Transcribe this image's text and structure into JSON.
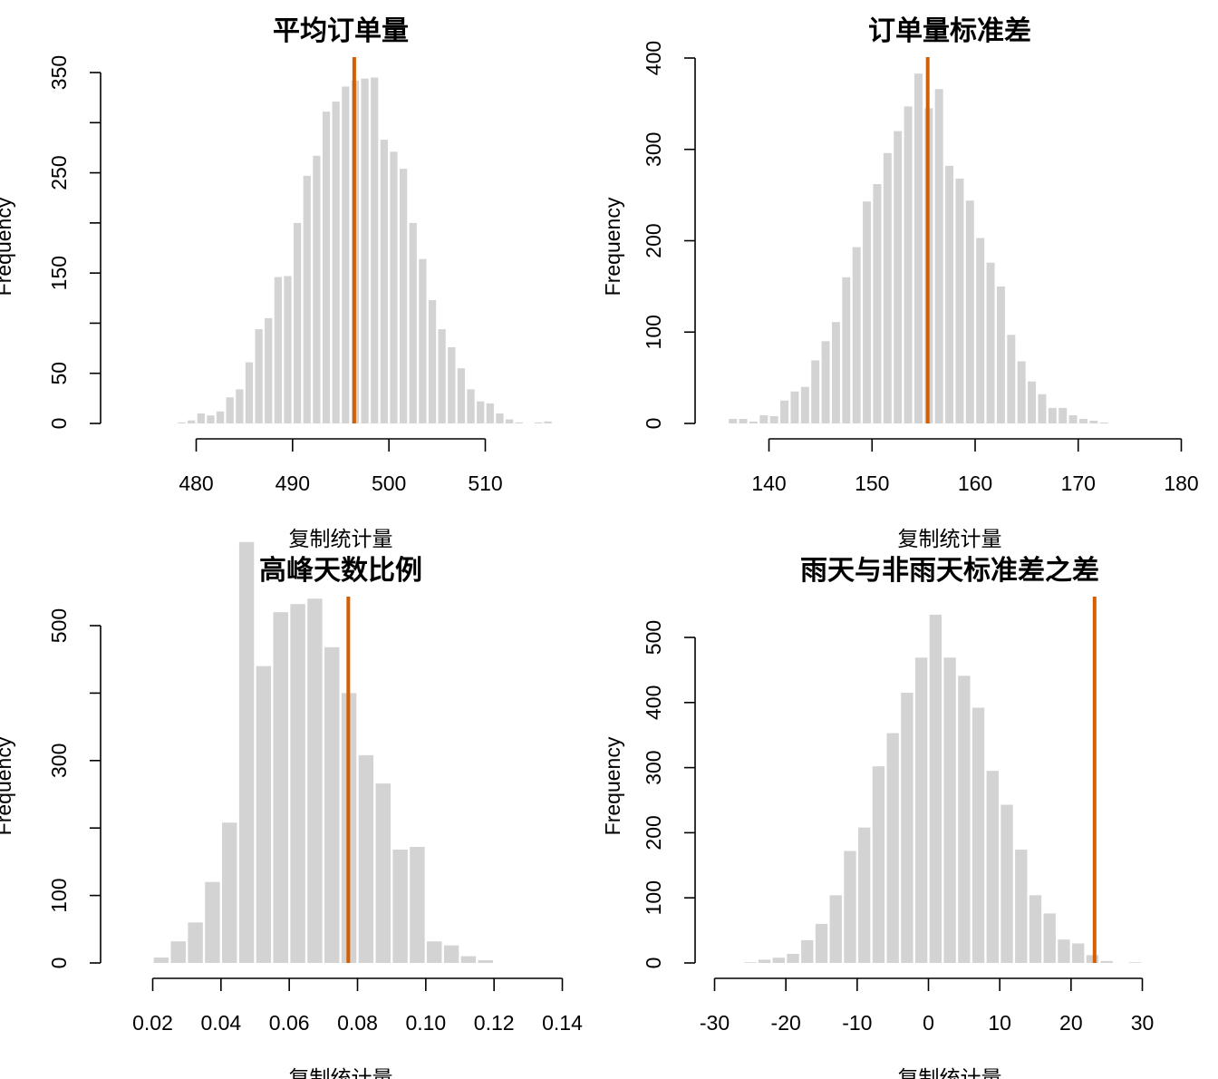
{
  "figure": {
    "bar_color": "#d3d3d3",
    "marker_color": "#d55e00"
  },
  "chart_data": [
    {
      "type": "bar",
      "title": "平均订单量",
      "xlabel": "复制统计量",
      "ylabel": "Frequency",
      "xlim": [
        478,
        518
      ],
      "ylim": [
        0,
        350
      ],
      "x_ticks": [
        480,
        490,
        500,
        510
      ],
      "y_ticks": [
        0,
        50,
        150,
        250,
        350
      ],
      "bin_start": 477,
      "bin_width": 1,
      "values": [
        0,
        1,
        3,
        10,
        8,
        12,
        26,
        34,
        61,
        94,
        105,
        146,
        147,
        200,
        247,
        267,
        311,
        321,
        336,
        342,
        344,
        345,
        283,
        271,
        254,
        200,
        164,
        123,
        94,
        76,
        55,
        34,
        22,
        20,
        10,
        4,
        1,
        0,
        1,
        2
      ],
      "observed": 496.4,
      "grid": false,
      "legend": "none"
    },
    {
      "type": "bar",
      "title": "订单量标准差",
      "xlabel": "复制统计量",
      "ylabel": "Frequency",
      "xlim": [
        140,
        180
      ],
      "ylim": [
        0,
        400
      ],
      "x_ticks": [
        140,
        150,
        160,
        170,
        180
      ],
      "y_ticks": [
        0,
        100,
        200,
        300,
        400
      ],
      "bin_start": 136,
      "bin_width": 1,
      "values": [
        5,
        5,
        2,
        9,
        8,
        25,
        35,
        40,
        69,
        90,
        111,
        160,
        193,
        243,
        262,
        296,
        320,
        347,
        383,
        345,
        366,
        282,
        268,
        244,
        203,
        176,
        150,
        97,
        68,
        46,
        32,
        17,
        17,
        9,
        5,
        3,
        1
      ],
      "observed": 155.4,
      "grid": false,
      "legend": "none"
    },
    {
      "type": "bar",
      "title": "高峰天数比例",
      "xlabel": "复制统计量",
      "ylabel": "Frequency",
      "xlim": [
        0.02,
        0.14
      ],
      "ylim": [
        0,
        600
      ],
      "x_ticks": [
        0.02,
        0.04,
        0.06,
        0.08,
        0.1,
        0.12,
        0.14
      ],
      "x_tick_labels": [
        "0.02",
        "0.04",
        "0.06",
        "0.08",
        "0.10",
        "0.12",
        "0.14"
      ],
      "y_ticks": [
        0,
        100,
        300,
        500
      ],
      "bin_start": 0.02,
      "bin_width": 0.005,
      "values": [
        8,
        32,
        60,
        120,
        208,
        624,
        440,
        520,
        532,
        540,
        468,
        400,
        308,
        266,
        168,
        172,
        32,
        26,
        10,
        4
      ],
      "observed": 0.0773,
      "grid": false,
      "legend": "none"
    },
    {
      "type": "bar",
      "title": "雨天与非雨天标准差之差",
      "xlabel": "复制统计量",
      "ylabel": "Frequency",
      "xlim": [
        -30,
        30
      ],
      "ylim": [
        0,
        500
      ],
      "x_ticks": [
        -30,
        -20,
        -10,
        0,
        10,
        20,
        30
      ],
      "y_ticks": [
        0,
        100,
        200,
        300,
        400,
        500
      ],
      "bin_start": -28,
      "bin_width": 2,
      "values": [
        0,
        1,
        5,
        8,
        14,
        35,
        60,
        104,
        172,
        208,
        302,
        353,
        415,
        469,
        535,
        469,
        441,
        392,
        295,
        243,
        174,
        104,
        76,
        36,
        30,
        12,
        3,
        0,
        1
      ],
      "observed": 23.3,
      "grid": false,
      "legend": "none"
    }
  ]
}
